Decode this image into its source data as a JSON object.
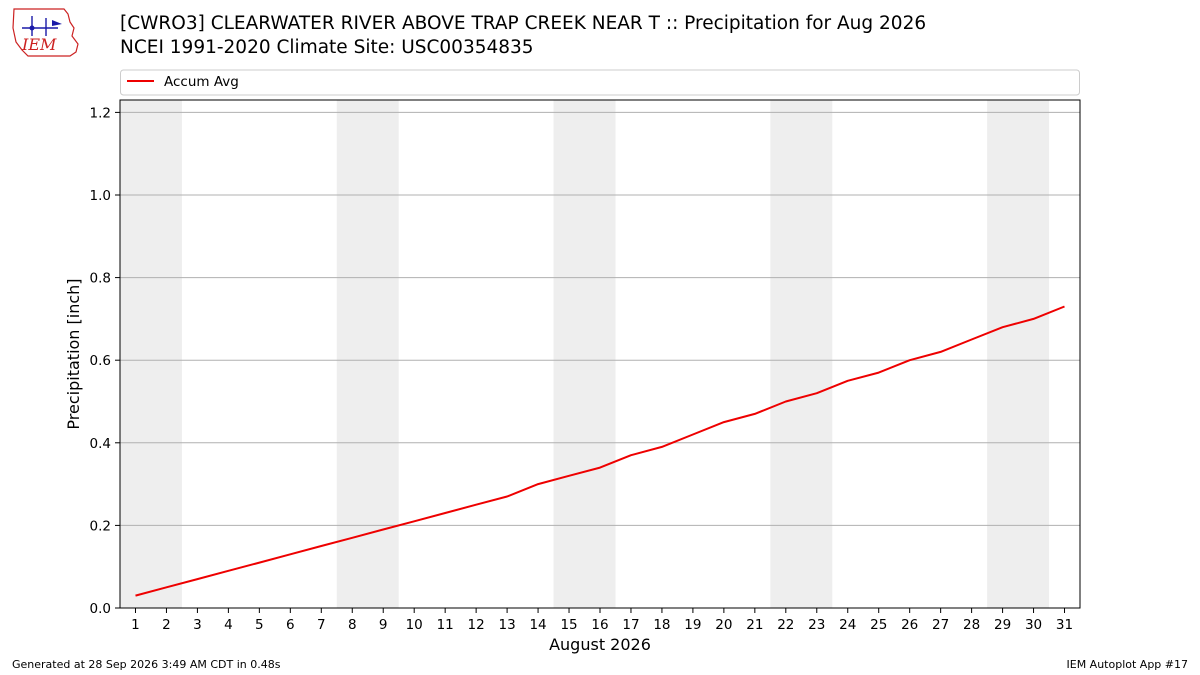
{
  "header": {
    "logo_text": "IEM",
    "title_line1": "[CWRO3] CLEARWATER RIVER ABOVE TRAP CREEK NEAR T :: Precipitation for Aug 2026",
    "title_line2": "NCEI 1991-2020 Climate Site: USC00354835"
  },
  "footer": {
    "left": "Generated at 28 Sep 2026 3:49 AM CDT in 0.48s",
    "right": "IEM Autoplot App #17"
  },
  "colors": {
    "line": "#ee0000",
    "weekend_band": "#eeeeee",
    "grid": "#b0b0b0"
  },
  "chart_data": {
    "type": "line",
    "title": "[CWRO3] CLEARWATER RIVER ABOVE TRAP CREEK NEAR T :: Precipitation for Aug 2026",
    "subtitle": "NCEI 1991-2020 Climate Site: USC00354835",
    "xlabel": "August 2026",
    "ylabel": "Precipitation [inch]",
    "xlim": [
      0.5,
      31.5
    ],
    "ylim": [
      0,
      1.23
    ],
    "y_ticks": [
      "0.0",
      "0.2",
      "0.4",
      "0.6",
      "0.8",
      "1.0",
      "1.2"
    ],
    "y_tick_values": [
      0,
      0.2,
      0.4,
      0.6,
      0.8,
      1.0,
      1.2
    ],
    "categories": [
      "1",
      "2",
      "3",
      "4",
      "5",
      "6",
      "7",
      "8",
      "9",
      "10",
      "11",
      "12",
      "13",
      "14",
      "15",
      "16",
      "17",
      "18",
      "19",
      "20",
      "21",
      "22",
      "23",
      "24",
      "25",
      "26",
      "27",
      "28",
      "29",
      "30",
      "31"
    ],
    "grid": "horizontal",
    "legend": "top",
    "weekend_bands": [
      [
        1,
        2
      ],
      [
        8,
        9
      ],
      [
        15,
        16
      ],
      [
        22,
        23
      ],
      [
        29,
        30
      ]
    ],
    "series": [
      {
        "name": "Accum Avg",
        "x": [
          1,
          2,
          3,
          4,
          5,
          6,
          7,
          8,
          9,
          10,
          11,
          12,
          13,
          14,
          15,
          16,
          17,
          18,
          19,
          20,
          21,
          22,
          23,
          24,
          25,
          26,
          27,
          28,
          29,
          30,
          31
        ],
        "values": [
          0.03,
          0.05,
          0.07,
          0.09,
          0.11,
          0.13,
          0.15,
          0.17,
          0.19,
          0.21,
          0.23,
          0.25,
          0.27,
          0.3,
          0.32,
          0.34,
          0.37,
          0.39,
          0.42,
          0.45,
          0.47,
          0.5,
          0.52,
          0.55,
          0.57,
          0.6,
          0.62,
          0.65,
          0.68,
          0.7,
          0.73
        ]
      }
    ]
  }
}
